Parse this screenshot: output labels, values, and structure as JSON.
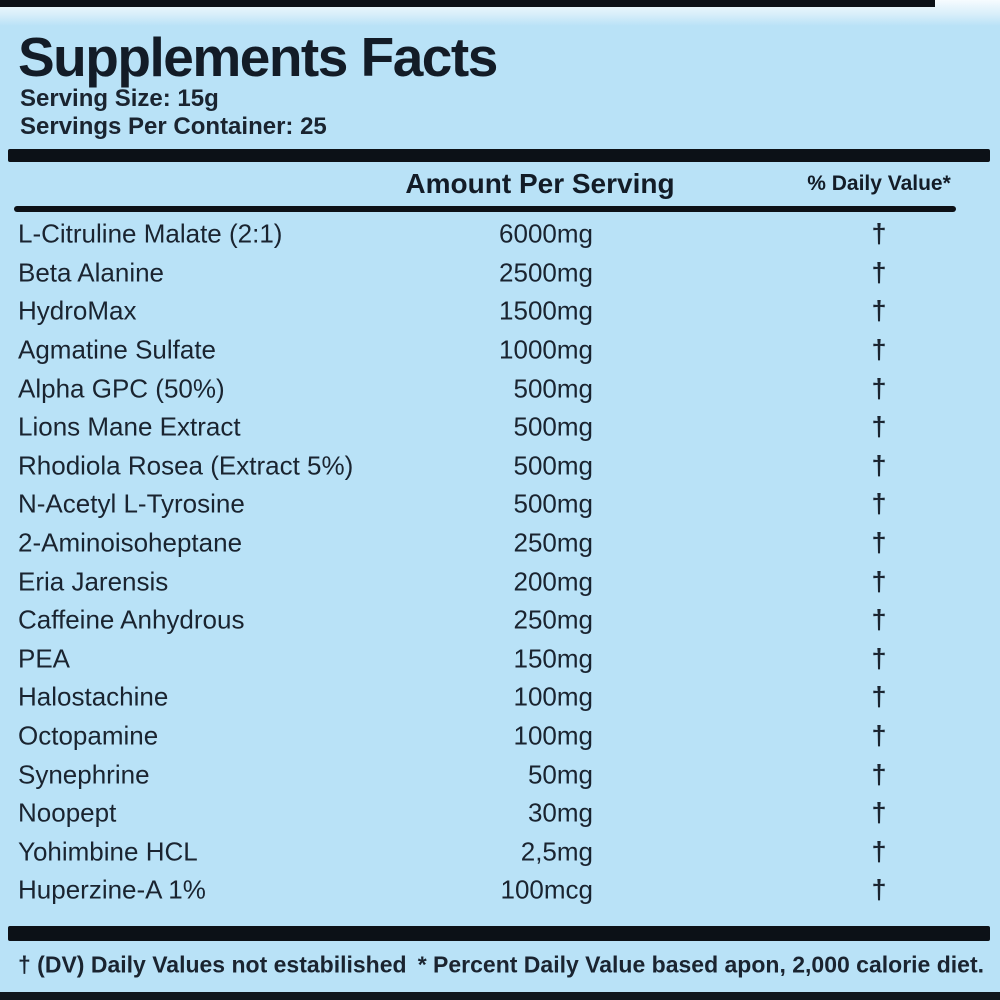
{
  "label": {
    "title": "Supplements Facts",
    "serving_size": "Serving Size: 15g",
    "servings_per_container": "Servings Per Container: 25",
    "columns": {
      "amount_header": "Amount Per Serving",
      "daily_value_header": "% Daily Value*"
    },
    "rows": [
      {
        "name": "L-Citruline Malate (2:1)",
        "amount": "6000mg",
        "dv": "†"
      },
      {
        "name": "Beta Alanine",
        "amount": "2500mg",
        "dv": "†"
      },
      {
        "name": "HydroMax",
        "amount": "1500mg",
        "dv": "†"
      },
      {
        "name": "Agmatine Sulfate",
        "amount": "1000mg",
        "dv": "†"
      },
      {
        "name": "Alpha GPC (50%)",
        "amount": "500mg",
        "dv": "†"
      },
      {
        "name": "Lions Mane Extract",
        "amount": "500mg",
        "dv": "†"
      },
      {
        "name": "Rhodiola Rosea (Extract 5%)",
        "amount": "500mg",
        "dv": "†"
      },
      {
        "name": "N-Acetyl L-Tyrosine",
        "amount": "500mg",
        "dv": "†"
      },
      {
        "name": "2-Aminoisoheptane",
        "amount": "250mg",
        "dv": "†"
      },
      {
        "name": "Eria Jarensis",
        "amount": "200mg",
        "dv": "†"
      },
      {
        "name": "Caffeine Anhydrous",
        "amount": "250mg",
        "dv": "†"
      },
      {
        "name": "PEA",
        "amount": "150mg",
        "dv": "†"
      },
      {
        "name": "Halostachine",
        "amount": "100mg",
        "dv": "†"
      },
      {
        "name": "Octopamine",
        "amount": "100mg",
        "dv": "†"
      },
      {
        "name": "Synephrine",
        "amount": "50mg",
        "dv": "†"
      },
      {
        "name": "Noopept",
        "amount": "30mg",
        "dv": "†"
      },
      {
        "name": "Yohimbine HCL",
        "amount": "2,5mg",
        "dv": "†"
      },
      {
        "name": "Huperzine-A 1%",
        "amount": "100mcg",
        "dv": "†"
      }
    ],
    "footnotes": {
      "left": "† (DV) Daily Values not estabilished",
      "right": "* Percent Daily Value based apon, 2,000 calorie diet."
    },
    "colors": {
      "background": "#b9e2f7",
      "text": "#1a2430",
      "bar": "#0c1117"
    }
  }
}
